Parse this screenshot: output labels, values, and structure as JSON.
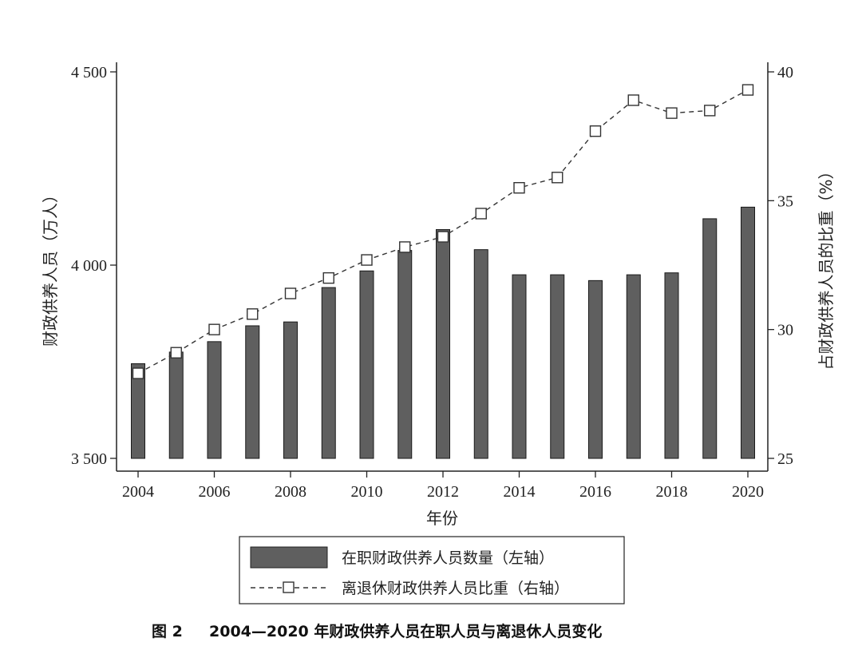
{
  "chart_data": {
    "type": "bar+line",
    "x": [
      2004,
      2005,
      2006,
      2007,
      2008,
      2009,
      2010,
      2011,
      2012,
      2013,
      2014,
      2015,
      2016,
      2017,
      2018,
      2019,
      2020
    ],
    "x_tick_labels": [
      "2004",
      "2006",
      "2008",
      "2010",
      "2012",
      "2014",
      "2016",
      "2018",
      "2020"
    ],
    "xlabel": "年份",
    "left_axis": {
      "label": "财政供养人员（万人）",
      "ylim": [
        3500,
        4500
      ],
      "tick_values": [
        3500,
        4000,
        4500
      ],
      "tick_labels": [
        "3 500",
        "4 000",
        "4 500"
      ]
    },
    "right_axis": {
      "label": "占财政供养人员的比重（%）",
      "ylim": [
        25,
        40
      ],
      "tick_values": [
        25,
        30,
        35,
        40
      ],
      "tick_labels": [
        "25",
        "30",
        "35",
        "40"
      ]
    },
    "series": [
      {
        "name": "在职财政供养人员数量（左轴）",
        "type": "bar",
        "axis": "left",
        "color": "#5f5f5f",
        "values": [
          3745,
          3775,
          3802,
          3843,
          3853,
          3942,
          3985,
          4038,
          4092,
          4040,
          3975,
          3975,
          3960,
          3975,
          3980,
          4120,
          4150
        ]
      },
      {
        "name": "离退休财政供养人员比重（右轴）",
        "type": "line",
        "axis": "right",
        "color": "#333333",
        "marker": "hollow-square",
        "line_style": "dashed",
        "values": [
          28.3,
          29.1,
          30.0,
          30.6,
          31.4,
          32.0,
          32.7,
          33.2,
          33.6,
          34.5,
          35.5,
          35.9,
          37.7,
          38.9,
          38.4,
          38.5,
          39.3
        ]
      }
    ],
    "legend_position": "bottom"
  },
  "caption": {
    "figure_number": "图 2",
    "title": "2004—2020 年财政供养人员在职人员与离退休人员变化"
  }
}
